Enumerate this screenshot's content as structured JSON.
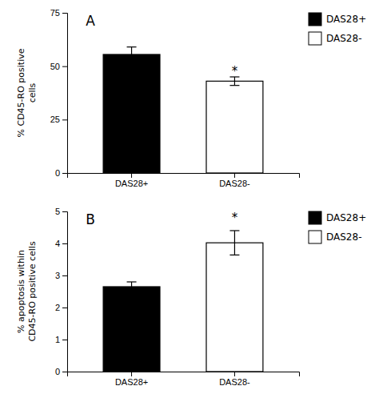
{
  "chart_data": [
    {
      "type": "bar",
      "title": "A",
      "categories": [
        "DAS28+",
        "DAS28-"
      ],
      "series": [
        {
          "name": "DAS28+",
          "color": "#000000",
          "values": [
            55.5,
            null
          ],
          "errors": [
            3.5,
            null
          ]
        },
        {
          "name": "DAS28-",
          "color": "#ffffff",
          "values": [
            null,
            43.0
          ],
          "errors": [
            null,
            2.0
          ]
        }
      ],
      "y_label": "% CD45-RO positive\ncells",
      "ylim": [
        0,
        75
      ],
      "yticks": [
        0,
        25,
        50,
        75
      ],
      "annotations": [
        {
          "text": "*",
          "x": "DAS28-",
          "y": 49.0
        }
      ],
      "legend": "right"
    },
    {
      "type": "bar",
      "title": "B",
      "categories": [
        "DAS28+",
        "DAS28-"
      ],
      "series": [
        {
          "name": "DAS28+",
          "color": "#000000",
          "values": [
            2.65,
            null
          ],
          "errors": [
            0.15,
            null
          ]
        },
        {
          "name": "DAS28-",
          "color": "#ffffff",
          "values": [
            null,
            4.02
          ],
          "errors": [
            null,
            0.38
          ]
        }
      ],
      "y_label": "% apoptosis within\nCD45-RO positive cells",
      "ylim": [
        0,
        5
      ],
      "yticks": [
        0,
        1,
        2,
        3,
        4,
        5
      ],
      "annotations": [
        {
          "text": "*",
          "x": "DAS28-",
          "y": 4.9
        }
      ],
      "legend": "right"
    }
  ]
}
